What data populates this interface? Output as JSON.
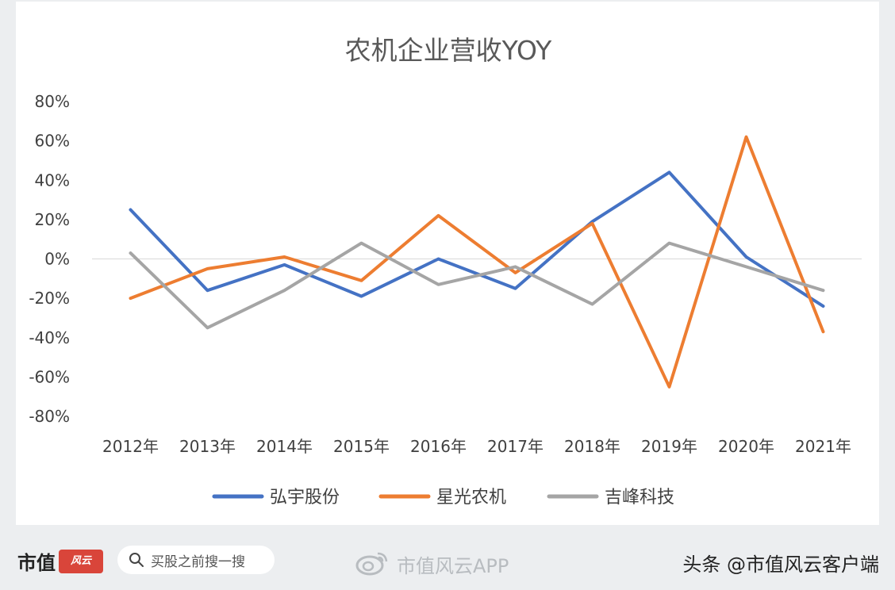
{
  "chart_data": {
    "type": "line",
    "title": "农机企业营收YOY",
    "categories": [
      "2012年",
      "2013年",
      "2014年",
      "2015年",
      "2016年",
      "2017年",
      "2018年",
      "2019年",
      "2020年",
      "2021年"
    ],
    "series": [
      {
        "name": "弘宇股份",
        "color": "#4472c4",
        "values": [
          25,
          -16,
          -3,
          -19,
          0,
          -15,
          19,
          44,
          1,
          -24
        ]
      },
      {
        "name": "星光农机",
        "color": "#ed7d31",
        "values": [
          -20,
          -5,
          1,
          -11,
          22,
          -7,
          18,
          -65,
          62,
          -37
        ]
      },
      {
        "name": "吉峰科技",
        "color": "#a5a5a5",
        "values": [
          3,
          -35,
          -16,
          8,
          -13,
          -4,
          -23,
          8,
          -4,
          -16
        ]
      }
    ],
    "y_ticks": [
      "80%",
      "60%",
      "40%",
      "20%",
      "0%",
      "-20%",
      "-40%",
      "-60%",
      "-80%"
    ],
    "ylim": [
      -80,
      80
    ],
    "ytick_step": 20,
    "grid": false,
    "zero_line": true,
    "legend_position": "bottom"
  },
  "footer": {
    "brand": "市值",
    "brand_seal": "风云",
    "search_placeholder": "买股之前搜一搜",
    "app_name": "市值风云APP",
    "source": "头条 @市值风云客户端"
  },
  "colors": {
    "background": "#eceef0",
    "card": "#ffffff",
    "brand_red": "#d9453a"
  }
}
